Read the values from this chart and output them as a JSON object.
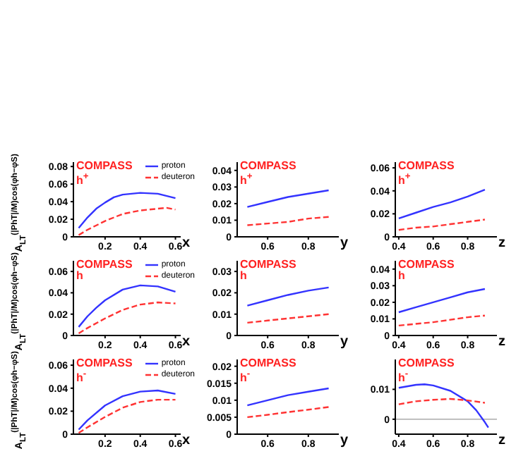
{
  "chart_data": [
    {
      "type": "line",
      "xlabel": "x",
      "ylabel": "A$_{LT}$$^{(|PhT|/M)cos(φh−φS)}$",
      "annotations": [
        "COMPASS",
        "h$^{+}$"
      ],
      "xlim": [
        0.02,
        0.63
      ],
      "xticks": [
        0.2,
        0.4,
        0.6
      ],
      "ylim": [
        0,
        0.085
      ],
      "yticks": [
        0,
        0.02,
        0.04,
        0.06,
        0.08
      ],
      "legend": "top right",
      "series": [
        {
          "name": "proton",
          "color": "#3333ff",
          "line_style": "solid",
          "x": [
            0.05,
            0.1,
            0.15,
            0.2,
            0.25,
            0.3,
            0.4,
            0.5,
            0.6
          ],
          "values": [
            0.01,
            0.022,
            0.032,
            0.039,
            0.045,
            0.048,
            0.05,
            0.049,
            0.044
          ]
        },
        {
          "name": "deuteron",
          "color": "#ff3333",
          "line_style": "dashed",
          "x": [
            0.05,
            0.1,
            0.2,
            0.3,
            0.4,
            0.5,
            0.55,
            0.6
          ],
          "values": [
            0.002,
            0.008,
            0.018,
            0.026,
            0.03,
            0.032,
            0.033,
            0.031
          ]
        }
      ]
    },
    {
      "type": "line",
      "xlabel": "y",
      "annotations": [
        "COMPASS",
        "h$^{+}$"
      ],
      "xlim": [
        0.45,
        0.95
      ],
      "xticks": [
        0.6,
        0.8
      ],
      "ylim": [
        0,
        0.045
      ],
      "yticks": [
        0,
        0.01,
        0.02,
        0.03,
        0.04
      ],
      "series": [
        {
          "color": "#3333ff",
          "line_style": "solid",
          "x": [
            0.5,
            0.6,
            0.7,
            0.8,
            0.9
          ],
          "values": [
            0.018,
            0.021,
            0.024,
            0.026,
            0.028
          ]
        },
        {
          "color": "#ff3333",
          "line_style": "dashed",
          "x": [
            0.5,
            0.6,
            0.7,
            0.8,
            0.9
          ],
          "values": [
            0.007,
            0.008,
            0.009,
            0.011,
            0.012
          ]
        }
      ]
    },
    {
      "type": "line",
      "xlabel": "z",
      "annotations": [
        "COMPASS",
        "h$^{+}$"
      ],
      "xlim": [
        0.38,
        0.97
      ],
      "xticks": [
        0.4,
        0.6,
        0.8
      ],
      "ylim": [
        0,
        0.065
      ],
      "yticks": [
        0,
        0.02,
        0.04,
        0.06
      ],
      "series": [
        {
          "color": "#3333ff",
          "line_style": "solid",
          "x": [
            0.4,
            0.5,
            0.6,
            0.7,
            0.8,
            0.9
          ],
          "values": [
            0.016,
            0.021,
            0.026,
            0.03,
            0.035,
            0.041
          ]
        },
        {
          "color": "#ff3333",
          "line_style": "dashed",
          "x": [
            0.4,
            0.5,
            0.6,
            0.7,
            0.8,
            0.9
          ],
          "values": [
            0.006,
            0.008,
            0.009,
            0.011,
            0.013,
            0.015
          ]
        }
      ]
    },
    {
      "type": "line",
      "xlabel": "x",
      "ylabel": "A$_{LT}$$^{(|PhT|/M)cos(φh−φS)}$",
      "annotations": [
        "COMPASS",
        "h"
      ],
      "xlim": [
        0.02,
        0.63
      ],
      "xticks": [
        0.2,
        0.4,
        0.6
      ],
      "ylim": [
        0,
        0.07
      ],
      "yticks": [
        0,
        0.02,
        0.04,
        0.06
      ],
      "legend": "top right",
      "series": [
        {
          "name": "proton",
          "color": "#3333ff",
          "line_style": "solid",
          "x": [
            0.05,
            0.1,
            0.15,
            0.2,
            0.3,
            0.4,
            0.5,
            0.6
          ],
          "values": [
            0.008,
            0.018,
            0.026,
            0.033,
            0.043,
            0.047,
            0.046,
            0.041
          ]
        },
        {
          "name": "deuteron",
          "color": "#ff3333",
          "line_style": "dashed",
          "x": [
            0.05,
            0.1,
            0.2,
            0.3,
            0.4,
            0.5,
            0.6
          ],
          "values": [
            0.002,
            0.007,
            0.016,
            0.024,
            0.029,
            0.031,
            0.03
          ]
        }
      ]
    },
    {
      "type": "line",
      "xlabel": "y",
      "annotations": [
        "COMPASS",
        "h"
      ],
      "xlim": [
        0.45,
        0.95
      ],
      "xticks": [
        0.6,
        0.8
      ],
      "ylim": [
        0,
        0.035
      ],
      "yticks": [
        0,
        0.01,
        0.02,
        0.03
      ],
      "series": [
        {
          "color": "#3333ff",
          "line_style": "solid",
          "x": [
            0.5,
            0.6,
            0.7,
            0.8,
            0.9
          ],
          "values": [
            0.014,
            0.0165,
            0.019,
            0.021,
            0.0225
          ]
        },
        {
          "color": "#ff3333",
          "line_style": "dashed",
          "x": [
            0.5,
            0.6,
            0.7,
            0.8,
            0.9
          ],
          "values": [
            0.006,
            0.007,
            0.008,
            0.009,
            0.01
          ]
        }
      ]
    },
    {
      "type": "line",
      "xlabel": "z",
      "annotations": [
        "COMPASS",
        "h"
      ],
      "xlim": [
        0.38,
        0.97
      ],
      "xticks": [
        0.4,
        0.6,
        0.8
      ],
      "ylim": [
        0,
        0.045
      ],
      "yticks": [
        0,
        0.01,
        0.02,
        0.03,
        0.04
      ],
      "series": [
        {
          "color": "#3333ff",
          "line_style": "solid",
          "x": [
            0.4,
            0.5,
            0.6,
            0.7,
            0.8,
            0.9
          ],
          "values": [
            0.014,
            0.017,
            0.02,
            0.023,
            0.026,
            0.028
          ]
        },
        {
          "color": "#ff3333",
          "line_style": "dashed",
          "x": [
            0.4,
            0.6,
            0.8,
            0.9
          ],
          "values": [
            0.006,
            0.008,
            0.011,
            0.012
          ]
        }
      ]
    },
    {
      "type": "line",
      "xlabel": "x",
      "ylabel": "A$_{LT}$$^{(|PhT|/M)cos(φh−φS)}$",
      "annotations": [
        "COMPASS",
        "h$^{-}$"
      ],
      "xlim": [
        0.02,
        0.63
      ],
      "xticks": [
        0.2,
        0.4,
        0.6
      ],
      "ylim": [
        0,
        0.065
      ],
      "yticks": [
        0,
        0.02,
        0.04,
        0.06
      ],
      "legend": "top right",
      "series": [
        {
          "name": "proton",
          "color": "#3333ff",
          "line_style": "solid",
          "x": [
            0.05,
            0.1,
            0.2,
            0.3,
            0.4,
            0.5,
            0.6
          ],
          "values": [
            0.004,
            0.012,
            0.025,
            0.033,
            0.037,
            0.038,
            0.035
          ]
        },
        {
          "name": "deuteron",
          "color": "#ff3333",
          "line_style": "dashed",
          "x": [
            0.05,
            0.1,
            0.2,
            0.3,
            0.4,
            0.5,
            0.6
          ],
          "values": [
            0.001,
            0.006,
            0.015,
            0.023,
            0.028,
            0.03,
            0.03
          ]
        }
      ]
    },
    {
      "type": "line",
      "xlabel": "y",
      "annotations": [
        "COMPASS",
        "h$^{-}$"
      ],
      "xlim": [
        0.45,
        0.95
      ],
      "xticks": [
        0.6,
        0.8
      ],
      "ylim": [
        0,
        0.022
      ],
      "yticks": [
        0,
        0.005,
        0.01,
        0.015,
        0.02
      ],
      "series": [
        {
          "color": "#3333ff",
          "line_style": "solid",
          "x": [
            0.5,
            0.6,
            0.7,
            0.8,
            0.9
          ],
          "values": [
            0.0085,
            0.01,
            0.0115,
            0.0125,
            0.0135
          ]
        },
        {
          "color": "#ff3333",
          "line_style": "dashed",
          "x": [
            0.5,
            0.6,
            0.7,
            0.8,
            0.9
          ],
          "values": [
            0.005,
            0.0057,
            0.0065,
            0.0072,
            0.008
          ]
        }
      ]
    },
    {
      "type": "line",
      "xlabel": "z",
      "annotations": [
        "COMPASS",
        "h$^{-}$"
      ],
      "xlim": [
        0.38,
        0.97
      ],
      "xticks": [
        0.4,
        0.6,
        0.8
      ],
      "ylim": [
        -0.005,
        0.02
      ],
      "yticks": [
        0,
        0.01
      ],
      "ref_lines": [
        {
          "axis": "y",
          "value": 0,
          "color": "#aaaaaa"
        }
      ],
      "series": [
        {
          "color": "#3333ff",
          "line_style": "solid",
          "x": [
            0.4,
            0.5,
            0.55,
            0.6,
            0.7,
            0.8,
            0.85,
            0.9,
            0.92
          ],
          "values": [
            0.0105,
            0.0115,
            0.0117,
            0.0113,
            0.0095,
            0.006,
            0.003,
            -0.001,
            -0.0028
          ]
        },
        {
          "color": "#ff3333",
          "line_style": "dashed",
          "x": [
            0.4,
            0.5,
            0.6,
            0.7,
            0.8,
            0.9
          ],
          "values": [
            0.005,
            0.006,
            0.0065,
            0.0068,
            0.0063,
            0.0055
          ]
        }
      ]
    }
  ]
}
